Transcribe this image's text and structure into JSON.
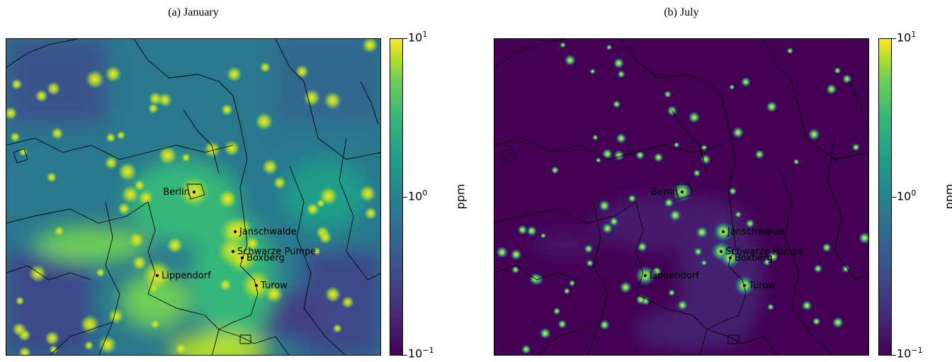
{
  "panels": [
    {
      "title": "(a) January",
      "scheme": "january"
    },
    {
      "title": "(b) July",
      "scheme": "july"
    }
  ],
  "colorbar": {
    "unit": "ppm",
    "ticks": [
      {
        "base": "10",
        "exp": "1"
      },
      {
        "base": "10",
        "exp": "0"
      },
      {
        "base": "10",
        "exp": "−1"
      }
    ],
    "range": [
      0.1,
      10
    ],
    "scale": "log",
    "colormap": "viridis"
  },
  "cities": [
    {
      "name": "Berlin"
    },
    {
      "name": "Janschwalde"
    },
    {
      "name": "Schwarze Pumpe"
    },
    {
      "name": "Boxberg"
    },
    {
      "name": "Lippendorf"
    },
    {
      "name": "Turow"
    }
  ],
  "colors": {
    "low": "#440154",
    "mid": "#21918c",
    "high": "#fde725"
  }
}
